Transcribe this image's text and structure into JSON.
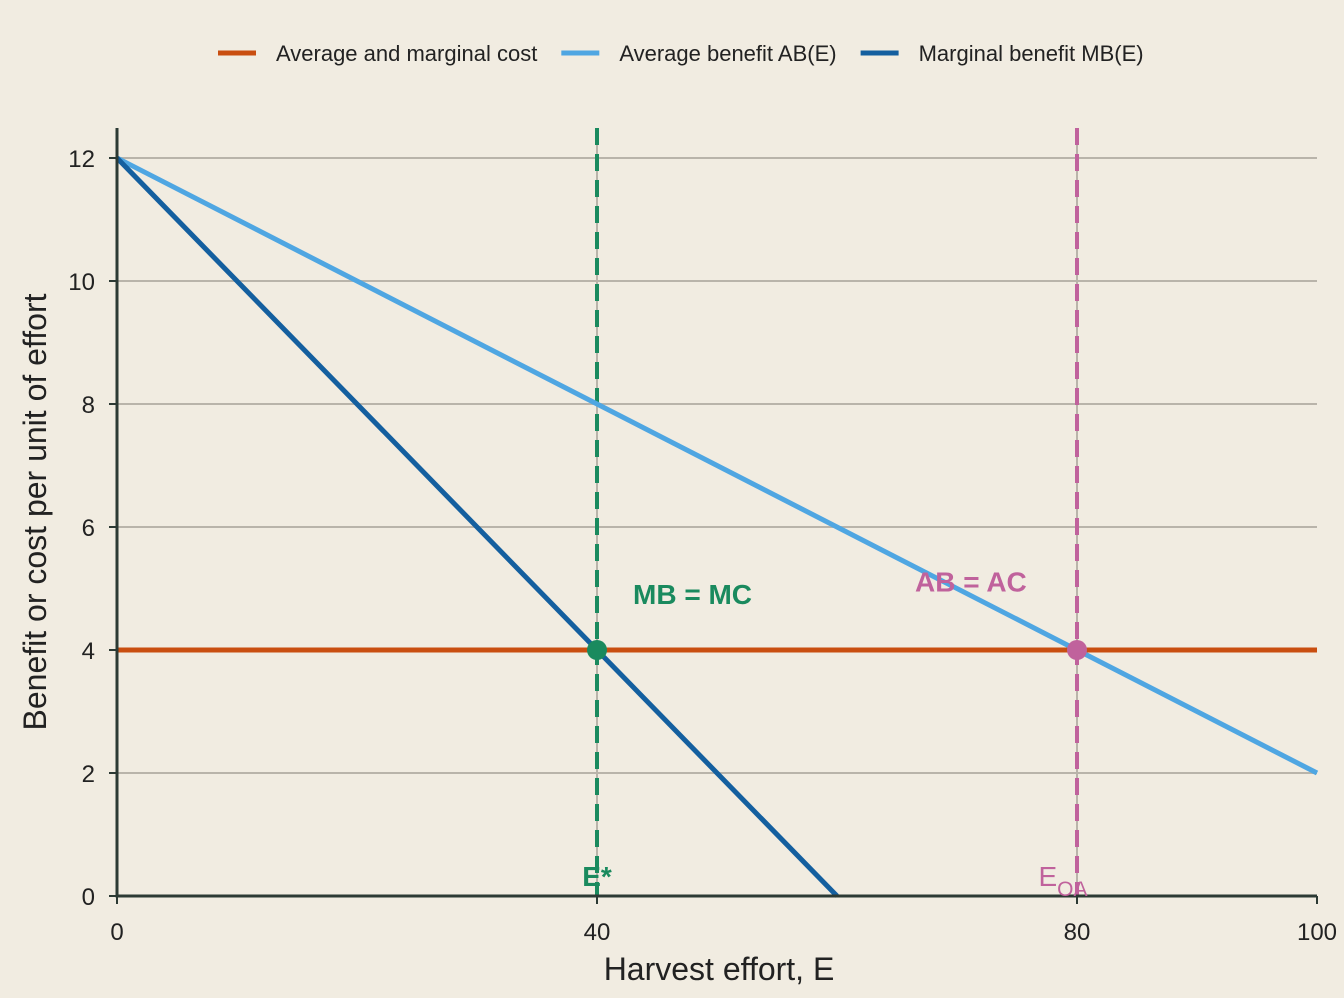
{
  "chart_data": {
    "type": "line",
    "title": "",
    "xlabel": "Harvest effort, E",
    "ylabel": "Benefit or cost per unit of effort",
    "xlim": [
      0,
      100
    ],
    "ylim": [
      0,
      12.5
    ],
    "xticks": [
      0,
      40,
      80,
      100
    ],
    "yticks": [
      0,
      2,
      4,
      6,
      8,
      10,
      12
    ],
    "grid": "horizontal",
    "legend_position": "top",
    "series": [
      {
        "name": "Average and marginal cost",
        "color": "#c94e10",
        "x": [
          0,
          100
        ],
        "y": [
          4,
          4
        ]
      },
      {
        "name": "Average benefit  AB(E)",
        "color": "#4fa6e2",
        "x": [
          0,
          100
        ],
        "y": [
          12,
          2
        ]
      },
      {
        "name": "Marginal benefit  MB(E)",
        "color": "#145f9f",
        "x": [
          0,
          60
        ],
        "y": [
          12,
          0
        ]
      }
    ],
    "reference_lines": [
      {
        "x": 40,
        "color": "#1a8a5e",
        "label": "E*"
      },
      {
        "x": 80,
        "color": "#c0629c",
        "label": "E",
        "label_sub": "OA"
      }
    ],
    "points": [
      {
        "x": 40,
        "y": 4,
        "color": "#1a8a5e"
      },
      {
        "x": 80,
        "y": 4,
        "color": "#c0629c"
      }
    ],
    "annotations": [
      {
        "text": "MB = MC",
        "x": 43,
        "y": 4.75,
        "color": "#1a8a5e"
      },
      {
        "text": "AB = AC",
        "x": 66.5,
        "y": 4.95,
        "color": "#c0629c"
      }
    ]
  }
}
